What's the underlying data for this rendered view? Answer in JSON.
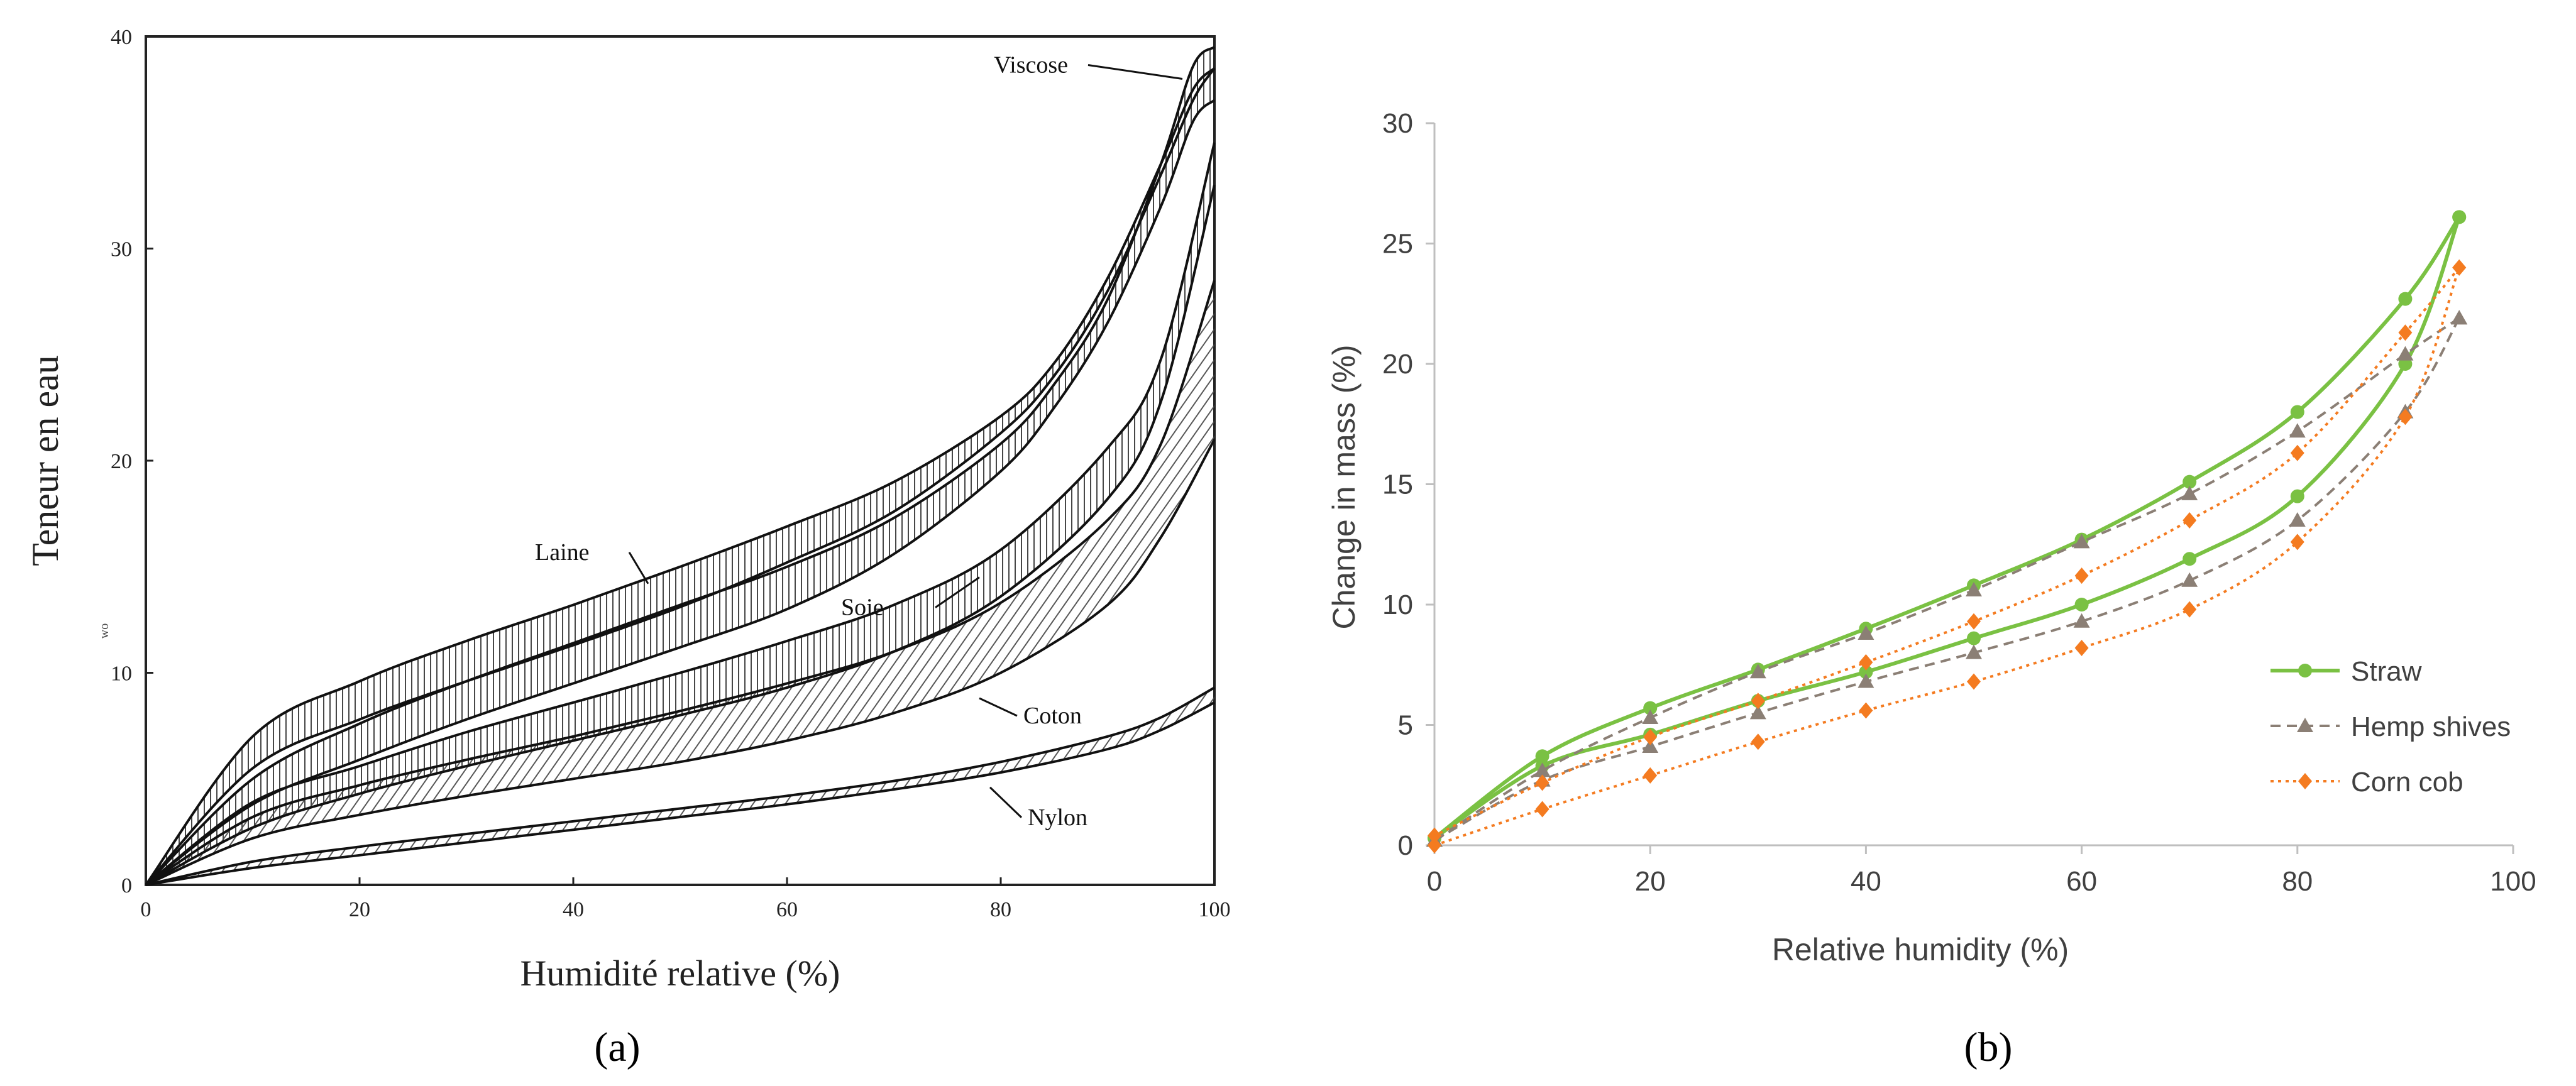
{
  "chart_data": [
    {
      "panel_label": "(a)",
      "type": "line",
      "title": "",
      "xlabel": "Humidité relative (%)",
      "ylabel": "Teneur en eau",
      "ylabel_sub": "wo",
      "xlim": [
        0,
        100
      ],
      "ylim": [
        0,
        40
      ],
      "xticks": [
        "0",
        "20",
        "40",
        "60",
        "80",
        "100"
      ],
      "yticks": [
        "0",
        "10",
        "20",
        "30",
        "40"
      ],
      "series": [
        {
          "name": "Laine",
          "x": [
            0,
            10,
            20,
            30,
            40,
            50,
            60,
            70,
            80,
            85,
            90,
            95,
            98,
            100
          ],
          "adsorption": [
            0,
            5.5,
            7.8,
            9.6,
            11.3,
            13.1,
            15.2,
            17.6,
            21.3,
            24.0,
            28.0,
            33.5,
            37.0,
            38.5
          ],
          "desorption": [
            0,
            7.0,
            9.6,
            11.5,
            13.2,
            15.0,
            16.9,
            19.0,
            22.1,
            24.6,
            28.6,
            34.0,
            37.5,
            38.5
          ]
        },
        {
          "name": "Viscose",
          "x": [
            0,
            10,
            20,
            30,
            40,
            50,
            60,
            70,
            80,
            85,
            90,
            95,
            98,
            100
          ],
          "adsorption": [
            0,
            3.8,
            5.9,
            7.8,
            9.5,
            11.2,
            13.0,
            15.6,
            19.5,
            22.5,
            26.5,
            32.0,
            36.0,
            37.0
          ],
          "desorption": [
            0,
            5.0,
            7.6,
            9.6,
            11.4,
            13.2,
            15.0,
            17.3,
            20.8,
            23.6,
            27.6,
            34.0,
            38.6,
            39.5
          ]
        },
        {
          "name": "Soie",
          "x": [
            0,
            10,
            20,
            30,
            40,
            50,
            60,
            70,
            80,
            90,
            95,
            100
          ],
          "adsorption": [
            0,
            2.7,
            4.3,
            5.6,
            6.8,
            8.0,
            9.3,
            11.0,
            13.6,
            18.2,
            22.8,
            33.0
          ],
          "desorption": [
            0,
            3.9,
            5.6,
            7.2,
            8.6,
            10.0,
            11.5,
            13.2,
            15.8,
            20.6,
            24.8,
            35.0
          ]
        },
        {
          "name": "Coton",
          "x": [
            0,
            10,
            20,
            30,
            40,
            50,
            60,
            70,
            80,
            90,
            95,
            100
          ],
          "adsorption": [
            0,
            2.2,
            3.3,
            4.2,
            5.0,
            5.8,
            6.8,
            8.1,
            10.0,
            13.2,
            16.4,
            21.0
          ],
          "desorption": [
            0,
            3.2,
            4.7,
            5.9,
            7.0,
            8.2,
            9.5,
            11.0,
            13.3,
            17.2,
            20.8,
            28.5
          ]
        },
        {
          "name": "Nylon",
          "x": [
            0,
            10,
            20,
            30,
            40,
            50,
            60,
            70,
            80,
            90,
            95,
            100
          ],
          "adsorption": [
            0,
            0.8,
            1.4,
            2.0,
            2.6,
            3.2,
            3.8,
            4.5,
            5.3,
            6.4,
            7.3,
            8.6
          ],
          "desorption": [
            0,
            1.1,
            1.8,
            2.4,
            3.0,
            3.6,
            4.2,
            4.9,
            5.8,
            7.0,
            7.9,
            9.3
          ]
        }
      ]
    },
    {
      "panel_label": "(b)",
      "type": "line",
      "title": "",
      "xlabel": "Relative humidity (%)",
      "ylabel": "Change in mass (%)",
      "xlim": [
        0,
        100
      ],
      "ylim": [
        0,
        30
      ],
      "xticks": [
        "0",
        "20",
        "40",
        "60",
        "80",
        "100"
      ],
      "yticks": [
        "0",
        "5",
        "10",
        "15",
        "20",
        "25",
        "30"
      ],
      "legend_position": "bottom-right",
      "series": [
        {
          "name": "Straw",
          "color": "#7ac143",
          "marker": "circle",
          "style": "solid",
          "x_ads": [
            0,
            10,
            20,
            30,
            40,
            50,
            60,
            70,
            80,
            90,
            95
          ],
          "adsorption": [
            0.3,
            3.3,
            4.6,
            6.0,
            7.2,
            8.6,
            10.0,
            11.9,
            14.5,
            20.0,
            26.1
          ],
          "x_des": [
            95,
            90,
            80,
            70,
            60,
            50,
            40,
            30,
            20,
            10,
            0
          ],
          "desorption": [
            26.1,
            22.7,
            18.0,
            15.1,
            12.7,
            10.8,
            9.0,
            7.3,
            5.7,
            3.7,
            0.3
          ]
        },
        {
          "name": "Hemp shives",
          "color": "#8b7f75",
          "marker": "triangle",
          "style": "dashed",
          "x_ads": [
            0,
            10,
            20,
            30,
            40,
            50,
            60,
            70,
            80,
            90,
            95
          ],
          "adsorption": [
            0.2,
            2.7,
            4.1,
            5.5,
            6.8,
            8.0,
            9.3,
            11.0,
            13.5,
            18.0,
            21.9
          ],
          "x_des": [
            95,
            90,
            80,
            70,
            60,
            50,
            40,
            30,
            20,
            10,
            0
          ],
          "desorption": [
            21.9,
            20.4,
            17.2,
            14.6,
            12.6,
            10.6,
            8.8,
            7.2,
            5.3,
            3.1,
            0.2
          ]
        },
        {
          "name": "Corn cob",
          "color": "#f47b20",
          "marker": "diamond",
          "style": "dotted",
          "x_ads": [
            0,
            10,
            20,
            30,
            40,
            50,
            60,
            70,
            80,
            90,
            95
          ],
          "adsorption": [
            0.0,
            1.5,
            2.9,
            4.3,
            5.6,
            6.8,
            8.2,
            9.8,
            12.6,
            17.8,
            24.0
          ],
          "x_des": [
            95,
            90,
            80,
            70,
            60,
            50,
            40,
            30,
            20,
            10,
            0
          ],
          "desorption": [
            24.0,
            21.3,
            16.3,
            13.5,
            11.2,
            9.3,
            7.6,
            6.0,
            4.5,
            2.6,
            0.4
          ]
        }
      ]
    }
  ]
}
